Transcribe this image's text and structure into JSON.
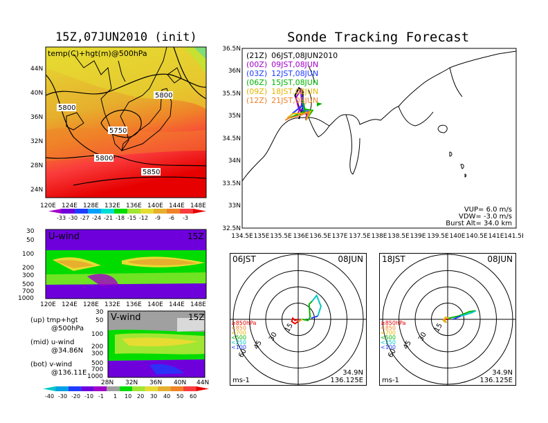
{
  "header": {
    "left_title": "15Z,07JUN2010 (init)",
    "right_title": "Sonde Tracking Forecast"
  },
  "top_map": {
    "label": "temp(C)+hgt(m)@500hPa",
    "contour_labels": [
      "5800",
      "5800",
      "5750",
      "5800",
      "5850"
    ],
    "lon_ticks": [
      "120E",
      "124E",
      "128E",
      "132E",
      "136E",
      "140E",
      "144E",
      "148E"
    ],
    "lat_ticks": [
      "44N",
      "40N",
      "36N",
      "32N",
      "28N",
      "24N"
    ],
    "colorbar_ticks": [
      "-33",
      "-30",
      "-27",
      "-24",
      "-21",
      "-18",
      "-15",
      "-12",
      "-9",
      "-6",
      "-3"
    ],
    "colorbar_colors": [
      "#a000c8",
      "#6e00dc",
      "#1e3cff",
      "#00a0ff",
      "#00dcd2",
      "#00dc00",
      "#a0e632",
      "#e6dc32",
      "#e6af2d",
      "#f08228",
      "#fa3c3c",
      "#e60000"
    ]
  },
  "uwind": {
    "label": "U-wind",
    "time": "15Z",
    "y_ticks": [
      "30",
      "50",
      "100",
      "200",
      "300",
      "500",
      "700",
      "1000"
    ],
    "x_ticks": [
      "120E",
      "124E",
      "128E",
      "132E",
      "136E",
      "140E",
      "144E",
      "148E"
    ]
  },
  "vwind": {
    "label": "V-wind",
    "time": "15Z",
    "y_ticks": [
      "30",
      "50",
      "100",
      "200",
      "300",
      "500",
      "700",
      "1000"
    ],
    "x_ticks": [
      "28N",
      "32N",
      "36N",
      "40N",
      "44N"
    ]
  },
  "notes": [
    {
      "line1": "(up) tmp+hgt",
      "line2": "@500hPa"
    },
    {
      "line1": "(mid) u-wind",
      "line2": "@34.86N"
    },
    {
      "line1": "(bot) v-wind",
      "line2": "@136.11E"
    }
  ],
  "wind_colorbar": {
    "ticks": [
      "-40",
      "-30",
      "-20",
      "-10",
      "-1",
      "1",
      "10",
      "20",
      "30",
      "40",
      "50",
      "60"
    ],
    "colors": [
      "#00c8c8",
      "#00a0e6",
      "#1e3cff",
      "#6e00dc",
      "#a000c8",
      "#a0a0a0",
      "#00dc00",
      "#a0e632",
      "#e6dc32",
      "#e6af2d",
      "#f08228",
      "#fa3c3c",
      "#e60000"
    ]
  },
  "track_map": {
    "legend": [
      {
        "run": "(21Z)",
        "time": "06JST,08JUN2010",
        "color": "#000000"
      },
      {
        "run": "(00Z)",
        "time": "09JST,08JUN",
        "color": "#a000c8"
      },
      {
        "run": "(03Z)",
        "time": "12JST,08JUN",
        "color": "#1e3cff"
      },
      {
        "run": "(06Z)",
        "time": "15JST,08JUN",
        "color": "#00b400"
      },
      {
        "run": "(09Z)",
        "time": "18JST,08JUN",
        "color": "#e6b400"
      },
      {
        "run": "(12Z)",
        "time": "21JST,08JUN",
        "color": "#f08228"
      }
    ],
    "lat_ticks": [
      "36.5N",
      "36N",
      "35.5N",
      "35N",
      "34.5N",
      "34N",
      "33.5N",
      "33N",
      "32.5N"
    ],
    "lon_ticks": [
      "134.5E",
      "135E",
      "135.5E",
      "136E",
      "136.5E",
      "137E",
      "137.5E",
      "138E",
      "138.5E",
      "139E",
      "139.5E",
      "140E",
      "140.5E",
      "141E",
      "141.5E"
    ],
    "params": [
      "VUP= 6.0 m/s",
      "VDW= -3.0 m/s",
      "Burst Alt= 34.0 km"
    ],
    "launch_point": {
      "lon": 136.125,
      "lat": 34.9
    },
    "tracks": [
      {
        "color": "#000000",
        "points": [
          [
            136.125,
            34.9
          ],
          [
            136.17,
            35.02
          ],
          [
            135.98,
            35.12
          ],
          [
            135.85,
            35.45
          ],
          [
            135.95,
            35.62
          ],
          [
            136.05,
            35.55
          ],
          [
            136.05,
            35.2
          ],
          [
            135.95,
            34.93
          ]
        ]
      },
      {
        "color": "#a000c8",
        "points": [
          [
            136.125,
            34.9
          ],
          [
            136.15,
            35.05
          ],
          [
            135.95,
            35.15
          ],
          [
            135.87,
            35.4
          ],
          [
            136.0,
            35.58
          ],
          [
            136.02,
            35.25
          ],
          [
            135.9,
            35.0
          ]
        ]
      },
      {
        "color": "#1e3cff",
        "points": [
          [
            136.125,
            34.9
          ],
          [
            136.2,
            35.1
          ],
          [
            136.05,
            35.12
          ],
          [
            136.03,
            35.45
          ],
          [
            136.07,
            35.25
          ],
          [
            135.78,
            35.05
          ]
        ]
      },
      {
        "color": "#00b400",
        "points": [
          [
            136.125,
            34.9
          ],
          [
            136.3,
            35.12
          ],
          [
            136.1,
            35.15
          ],
          [
            136.05,
            35.35
          ],
          [
            136.1,
            35.1
          ],
          [
            135.7,
            34.95
          ]
        ]
      },
      {
        "color": "#e6b400",
        "points": [
          [
            136.125,
            34.9
          ],
          [
            136.25,
            35.1
          ],
          [
            136.05,
            35.05
          ],
          [
            135.8,
            35.05
          ],
          [
            135.65,
            34.95
          ]
        ]
      },
      {
        "color": "#f08228",
        "points": [
          [
            136.125,
            34.9
          ],
          [
            136.2,
            35.08
          ],
          [
            135.95,
            35.0
          ],
          [
            135.7,
            34.95
          ],
          [
            135.6,
            34.9
          ]
        ]
      }
    ]
  },
  "hodographs": [
    {
      "time_label": "06JST",
      "date_label": "08JUN",
      "coords": [
        "34.9N",
        "136.125E"
      ],
      "unit": "ms-1",
      "ring_labels": [
        "15",
        "30",
        "45",
        "60"
      ],
      "legend": [
        {
          "text": "≥850hPa",
          "color": "#e60000"
        },
        {
          "text": "<850",
          "color": "#f08228"
        },
        {
          "text": "<700",
          "color": "#e6b400"
        },
        {
          "text": "<500",
          "color": "#00b400"
        },
        {
          "text": "<250",
          "color": "#00c8c8"
        },
        {
          "text": "<100",
          "color": "#1e3cff"
        }
      ],
      "segments": [
        {
          "color": "#e60000",
          "points": [
            [
              0,
              0
            ],
            [
              -3,
              -1
            ],
            [
              -5,
              1
            ],
            [
              -6,
              -2
            ],
            [
              -3,
              -4
            ],
            [
              0,
              -2
            ]
          ]
        },
        {
          "color": "#f08228",
          "points": [
            [
              0,
              -2
            ],
            [
              2,
              -1
            ]
          ]
        },
        {
          "color": "#e6b400",
          "points": [
            [
              2,
              -1
            ],
            [
              4,
              0
            ]
          ]
        },
        {
          "color": "#00b400",
          "points": [
            [
              4,
              0
            ],
            [
              9,
              -1
            ],
            [
              11,
              2
            ],
            [
              10,
              14
            ],
            [
              13,
              17
            ]
          ]
        },
        {
          "color": "#00c8c8",
          "points": [
            [
              13,
              17
            ],
            [
              17,
              22
            ],
            [
              21,
              12
            ],
            [
              18,
              3
            ]
          ]
        },
        {
          "color": "#1e3cff",
          "points": [
            [
              18,
              3
            ],
            [
              12,
              1
            ]
          ]
        }
      ]
    },
    {
      "time_label": "18JST",
      "date_label": "08JUN",
      "coords": [
        "34.9N",
        "136.125E"
      ],
      "unit": "ms-1",
      "ring_labels": [
        "15",
        "30",
        "45",
        "60"
      ],
      "legend": [
        {
          "text": "≥850hPa",
          "color": "#e60000"
        },
        {
          "text": "<850",
          "color": "#f08228"
        },
        {
          "text": "<700",
          "color": "#e6b400"
        },
        {
          "text": "<500",
          "color": "#00b400"
        },
        {
          "text": "<250",
          "color": "#00c8c8"
        },
        {
          "text": "<100",
          "color": "#1e3cff"
        }
      ],
      "segments": [
        {
          "color": "#e60000",
          "points": [
            [
              0,
              0
            ],
            [
              -2,
              0
            ]
          ]
        },
        {
          "color": "#f08228",
          "points": [
            [
              -2,
              0
            ],
            [
              -3,
              -2
            ],
            [
              -1,
              -3
            ]
          ]
        },
        {
          "color": "#e6b400",
          "points": [
            [
              -1,
              -3
            ],
            [
              -4,
              -1
            ],
            [
              -2,
              2
            ],
            [
              1,
              1
            ]
          ]
        },
        {
          "color": "#00b400",
          "points": [
            [
              1,
              1
            ],
            [
              10,
              3
            ],
            [
              20,
              7
            ],
            [
              26,
              8
            ]
          ]
        },
        {
          "color": "#00c8c8",
          "points": [
            [
              26,
              8
            ],
            [
              22,
              6
            ],
            [
              12,
              3
            ]
          ]
        },
        {
          "color": "#1e3cff",
          "points": [
            [
              12,
              3
            ],
            [
              5,
              0
            ]
          ]
        }
      ]
    }
  ]
}
